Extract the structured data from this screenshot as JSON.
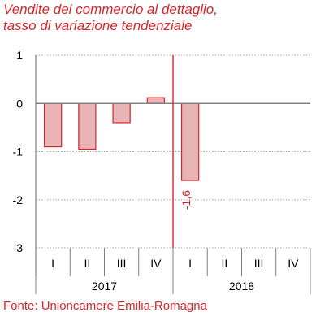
{
  "title_lines": [
    "Vendite del commercio al dettaglio,",
    "tasso di variazione tendenziale"
  ],
  "source": "Fonte: Unioncamere Emilia-Romagna",
  "colors": {
    "accent": "#d7262a",
    "bar_fill": "#e8b4b5",
    "bar_stroke": "#d7262a",
    "grid": "#a6a6a6",
    "axis": "#808080",
    "text": "#000000"
  },
  "chart_data": {
    "type": "bar",
    "categories": [
      "I",
      "II",
      "III",
      "IV",
      "I",
      "II",
      "III",
      "IV"
    ],
    "groups": [
      {
        "label": "2017",
        "categories": [
          "I",
          "II",
          "III",
          "IV"
        ]
      },
      {
        "label": "2018",
        "categories": [
          "I",
          "II",
          "III",
          "IV"
        ]
      }
    ],
    "values": [
      -0.9,
      -0.95,
      -0.4,
      0.12,
      -1.6,
      null,
      null,
      null
    ],
    "ylim": [
      -3,
      1
    ],
    "yticks": [
      1,
      0,
      -1,
      -2,
      -3
    ],
    "ytick_labels": [
      "1",
      "0",
      "-1",
      "-2",
      "-3"
    ],
    "data_labels": [
      {
        "index": 4,
        "text": "-1,6"
      }
    ],
    "separator_after_index": 3,
    "grid": true
  }
}
